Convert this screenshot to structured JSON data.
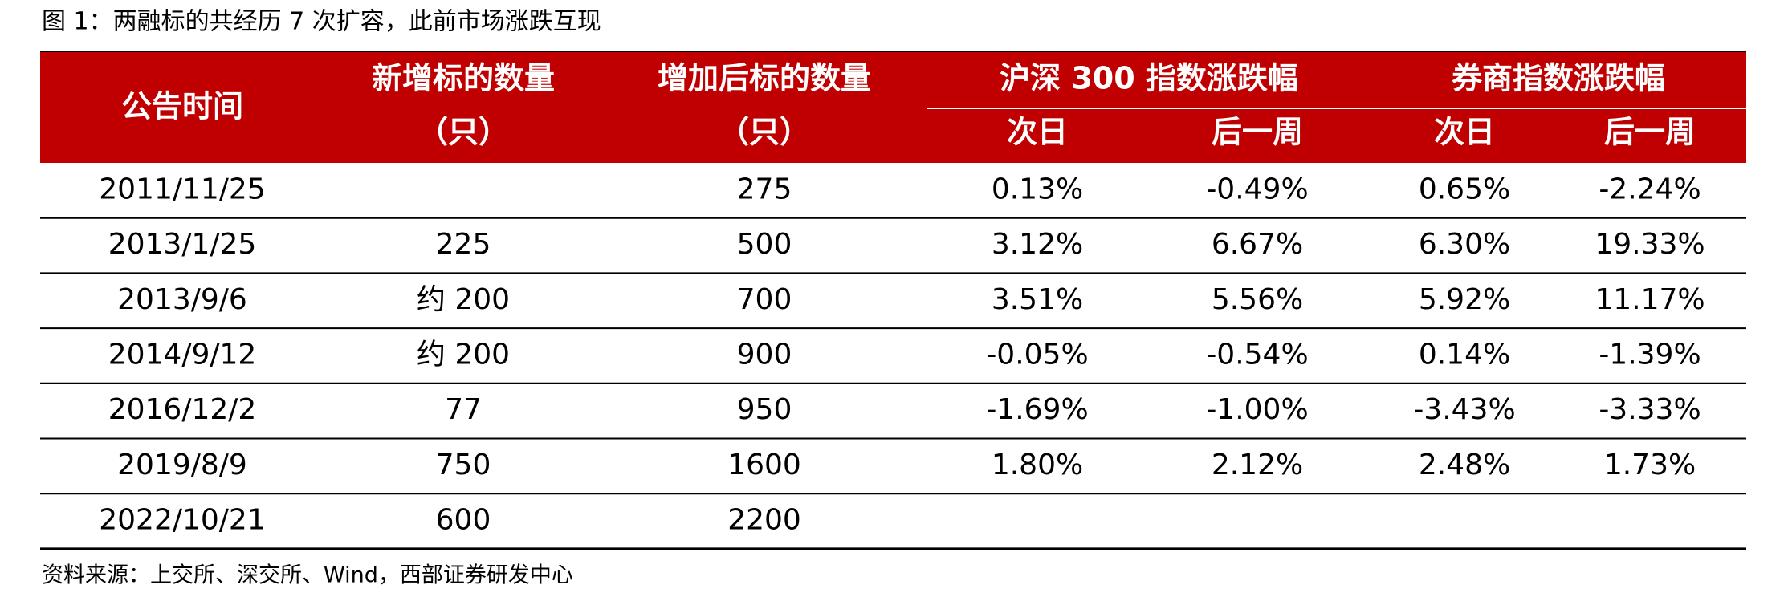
{
  "title": "图 1：两融标的共经历 7 次扩容，此前市场涨跌互现",
  "table": {
    "header": {
      "date": "公告时间",
      "added": [
        "新增标的数量",
        "（只）"
      ],
      "total": [
        "增加后标的数量",
        "（只）"
      ],
      "groups": [
        {
          "label": "沪深 300 指数涨跌幅",
          "sub": [
            "次日",
            "后一周"
          ]
        },
        {
          "label": "券商指数涨跌幅",
          "sub": [
            "次日",
            "后一周"
          ]
        }
      ]
    },
    "rows": [
      [
        "2011/11/25",
        null,
        "275",
        "0.13%",
        "-0.49%",
        "0.65%",
        "-2.24%"
      ],
      [
        "2013/1/25",
        "225",
        "500",
        "3.12%",
        "6.67%",
        "6.30%",
        "19.33%"
      ],
      [
        "2013/9/6",
        "约 200",
        "700",
        "3.51%",
        "5.56%",
        "5.92%",
        "11.17%"
      ],
      [
        "2014/9/12",
        "约 200",
        "900",
        "-0.05%",
        "-0.54%",
        "0.14%",
        "-1.39%"
      ],
      [
        "2016/12/2",
        "77",
        "950",
        "-1.69%",
        "-1.00%",
        "-3.43%",
        "-3.33%"
      ],
      [
        "2019/8/9",
        "750",
        "1600",
        "1.80%",
        "2.12%",
        "2.48%",
        "1.73%"
      ],
      [
        "2022/10/21",
        "600",
        "2200",
        null,
        null,
        null,
        null
      ]
    ]
  },
  "source": "资料来源：上交所、深交所、Wind，西部证券研发中心"
}
